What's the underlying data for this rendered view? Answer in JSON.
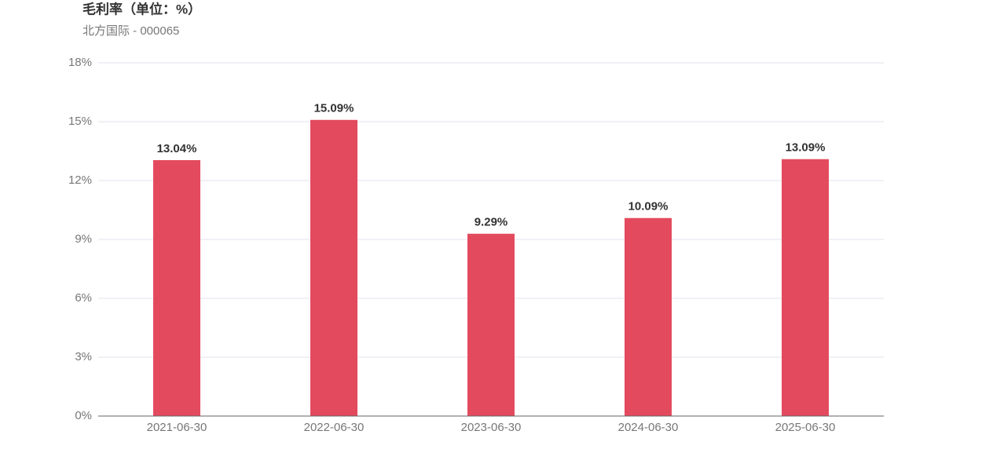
{
  "chart_data": {
    "type": "bar",
    "title": "毛利率（单位：%）",
    "subtitle": "北方国际 - 000065",
    "categories": [
      "2021-06-30",
      "2022-06-30",
      "2023-06-30",
      "2024-06-30",
      "2025-06-30"
    ],
    "values": [
      13.04,
      15.09,
      9.29,
      10.09,
      13.09
    ],
    "value_labels": [
      "13.04%",
      "15.09%",
      "9.29%",
      "10.09%",
      "13.09%"
    ],
    "color": "#e34a5e",
    "ylim": [
      0,
      18
    ],
    "yticks": [
      {
        "value": 0,
        "label": "0%"
      },
      {
        "value": 3,
        "label": "3%"
      },
      {
        "value": 6,
        "label": "6%"
      },
      {
        "value": 9,
        "label": "9%"
      },
      {
        "value": 12,
        "label": "12%"
      },
      {
        "value": 15,
        "label": "15%"
      },
      {
        "value": 18,
        "label": "18%"
      }
    ],
    "grid": true
  }
}
